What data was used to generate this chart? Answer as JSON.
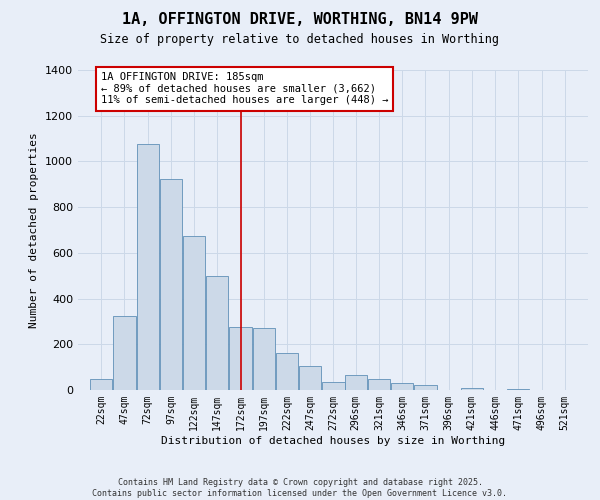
{
  "title": "1A, OFFINGTON DRIVE, WORTHING, BN14 9PW",
  "subtitle": "Size of property relative to detached houses in Worthing",
  "xlabel": "Distribution of detached houses by size in Worthing",
  "ylabel": "Number of detached properties",
  "footnote": "Contains HM Land Registry data © Crown copyright and database right 2025.\nContains public sector information licensed under the Open Government Licence v3.0.",
  "bar_color": "#ccd9e8",
  "bar_edge_color": "#6090b8",
  "categories": [
    "22sqm",
    "47sqm",
    "72sqm",
    "97sqm",
    "122sqm",
    "147sqm",
    "172sqm",
    "197sqm",
    "222sqm",
    "247sqm",
    "272sqm",
    "296sqm",
    "321sqm",
    "346sqm",
    "371sqm",
    "396sqm",
    "421sqm",
    "446sqm",
    "471sqm",
    "496sqm",
    "521sqm"
  ],
  "bin_edges": [
    22,
    47,
    72,
    97,
    122,
    147,
    172,
    197,
    222,
    247,
    272,
    296,
    321,
    346,
    371,
    396,
    421,
    446,
    471,
    496,
    521,
    546
  ],
  "values": [
    50,
    325,
    1075,
    925,
    675,
    500,
    275,
    270,
    160,
    105,
    35,
    65,
    50,
    30,
    20,
    0,
    10,
    0,
    5,
    0,
    0
  ],
  "vline_x": 185,
  "vline_color": "#cc0000",
  "annotation_text": "1A OFFINGTON DRIVE: 185sqm\n← 89% of detached houses are smaller (3,662)\n11% of semi-detached houses are larger (448) →",
  "annotation_box_color": "#ffffff",
  "annotation_box_edge": "#cc0000",
  "ylim": [
    0,
    1400
  ],
  "yticks": [
    0,
    200,
    400,
    600,
    800,
    1000,
    1200,
    1400
  ],
  "grid_color": "#ccd8e8",
  "background_color": "#e8eef8"
}
